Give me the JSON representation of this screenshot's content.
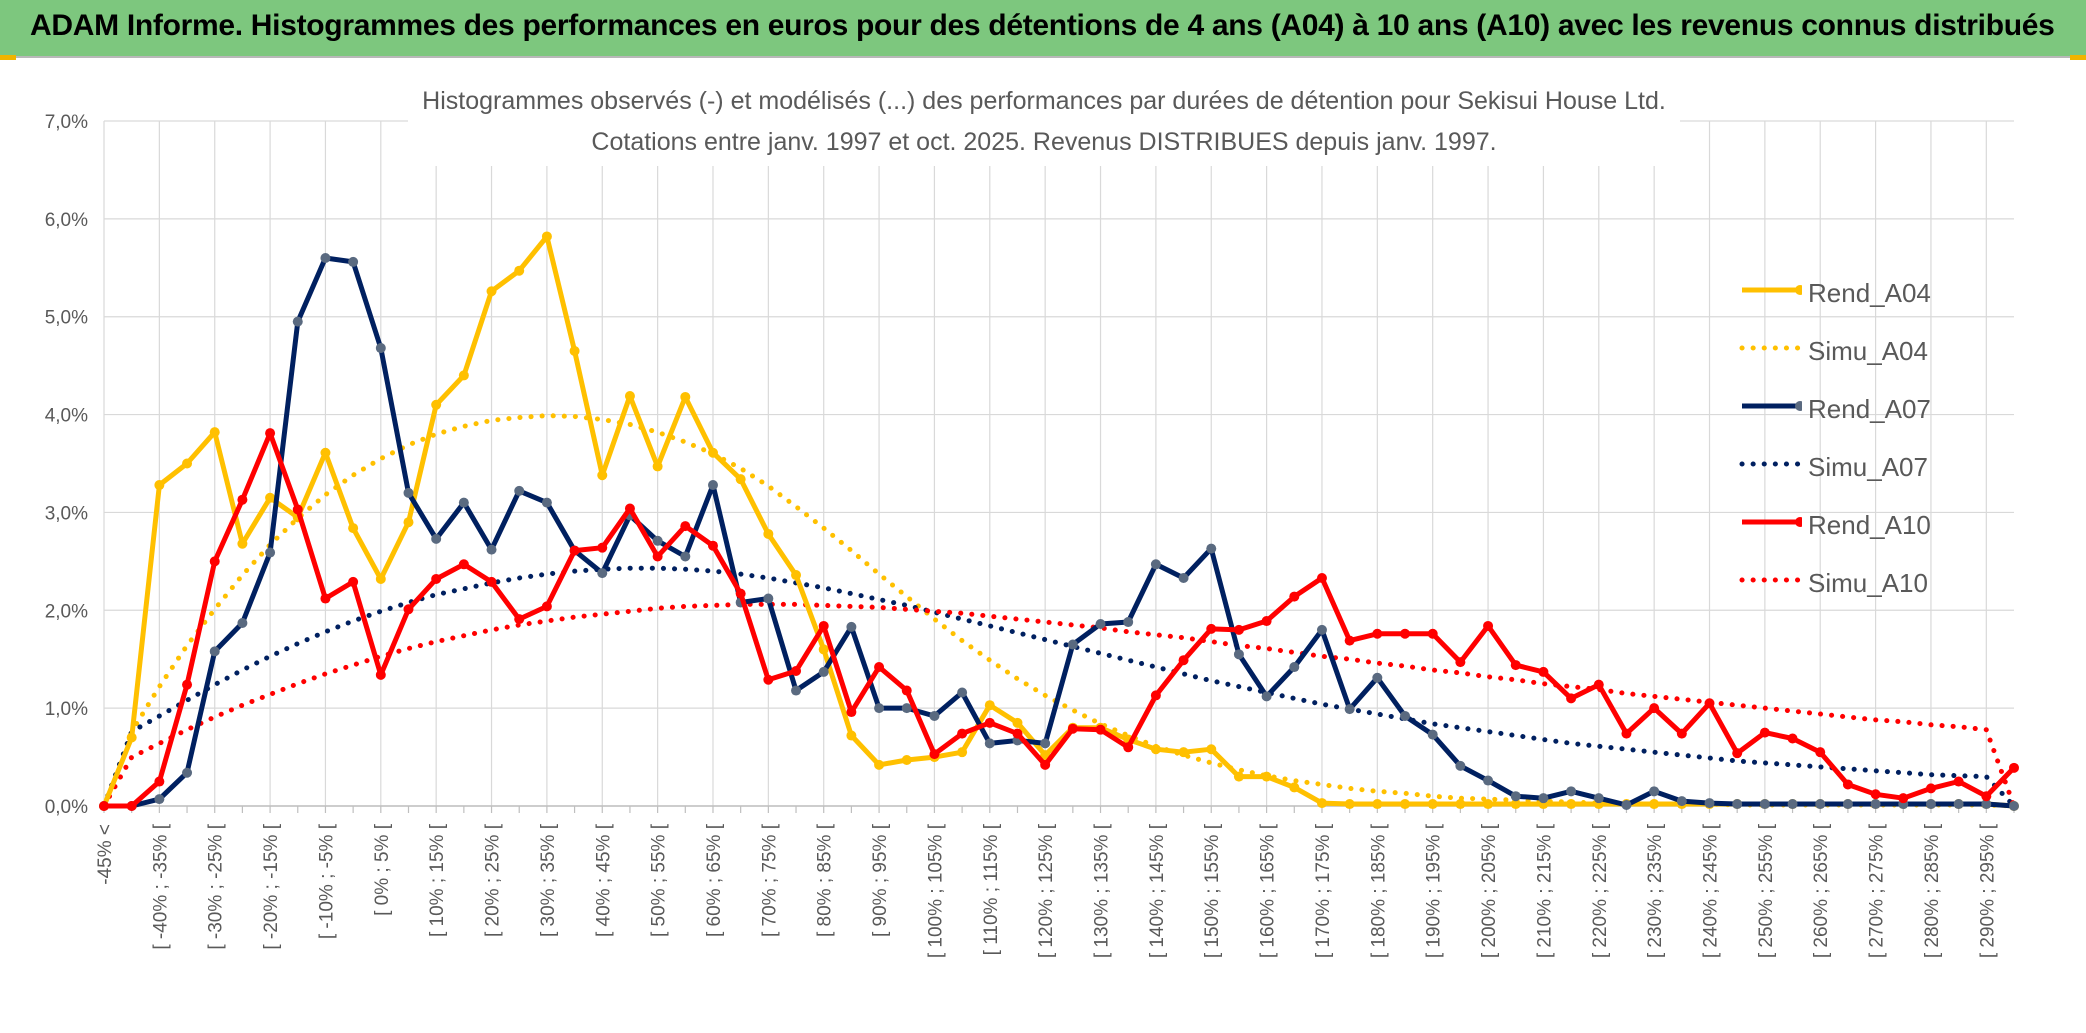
{
  "banner": {
    "title": "ADAM Informe. Histogrammes des performances en euros pour des détentions de 4 ans (A04) à 10 ans (A10) avec les revenus connus distribués"
  },
  "colors": {
    "banner_bg": "#7dc77e",
    "accent_corner": "#f0b400",
    "A04": "#ffc000",
    "A07": "#002060",
    "A07_marker": "#5a6a80",
    "A10": "#ff0000",
    "grid": "#d9d9d9",
    "axis_text": "#595959"
  },
  "chart_data": {
    "type": "line",
    "title": "Histogrammes observés (-) et modélisés (...) des performances par durées de détention pour Sekisui House Ltd.",
    "subtitle": "Cotations entre janv. 1997 et oct. 2025. Revenus DISTRIBUES depuis janv. 1997.",
    "xlabel": "",
    "ylabel": "",
    "ylim": [
      0,
      7
    ],
    "y_ticks": [
      "0,0%",
      "1,0%",
      "2,0%",
      "3,0%",
      "4,0%",
      "5,0%",
      "6,0%",
      "7,0%"
    ],
    "y_unit": "%",
    "grid": true,
    "legend_position": "right",
    "x_tick_labels": [
      "-45% <",
      "[ -40% ; -35% [",
      "[ -30% ; -25% [",
      "[ -20% ; -15% [",
      "[ -10% ; -5% [",
      "[ 0% ; 5% [",
      "[ 10% ; 15% [",
      "[ 20% ; 25% [",
      "[ 30% ; 35% [",
      "[ 40% ; 45% [",
      "[ 50% ; 55% [",
      "[ 60% ; 65% [",
      "[ 70% ; 75% [",
      "[ 80% ; 85% [",
      "[ 90% ; 95% [",
      "[ 100% ; 105% [",
      "[ 110% ; 115% [",
      "[ 120% ; 125% [",
      "[ 130% ; 135% [",
      "[ 140% ; 145% [",
      "[ 150% ; 155% [",
      "[ 160% ; 165% [",
      "[ 170% ; 175% [",
      "[ 180% ; 185% [",
      "[ 190% ; 195% [",
      "[ 200% ; 205% [",
      "[ 210% ; 215% [",
      "[ 220% ; 225% [",
      "[ 230% ; 235% [",
      "[ 240% ; 245% [",
      "[ 250% ; 255% [",
      "[ 260% ; 265% [",
      "[ 270% ; 275% [",
      "[ 280% ; 285% [",
      "[ 290% ; 295% ["
    ],
    "x_start_percent": -45,
    "x_end_percent": 300,
    "x_step_percent": 5,
    "series": [
      {
        "name": "Rend_A04",
        "style": "solid",
        "color": "#ffc000",
        "values": [
          0.0,
          0.7,
          3.28,
          3.5,
          3.82,
          2.68,
          3.15,
          2.95,
          3.61,
          2.84,
          2.32,
          2.9,
          4.1,
          4.4,
          5.26,
          5.47,
          5.82,
          4.65,
          3.38,
          4.19,
          3.47,
          4.18,
          3.61,
          3.34,
          2.78,
          2.36,
          1.6,
          0.72,
          0.42,
          0.47,
          0.5,
          0.55,
          1.03,
          0.85,
          0.52,
          0.8,
          0.8,
          0.68,
          0.58,
          0.55,
          0.58,
          0.3,
          0.3,
          0.19,
          0.03,
          0.02,
          0.02,
          0.02,
          0.02,
          0.02,
          0.02,
          0.02,
          0.02,
          0.02,
          0.02,
          0.02,
          0.02,
          0.02,
          0.02,
          0.02,
          0.02,
          0.02,
          0.02,
          0.02,
          0.02,
          0.02,
          0.02,
          0.02,
          0.02,
          0.0
        ]
      },
      {
        "name": "Simu_A04",
        "style": "dotted",
        "color": "#ffc000",
        "values": [
          0.0,
          0.76,
          1.22,
          1.64,
          2.01,
          2.36,
          2.67,
          2.94,
          3.18,
          3.38,
          3.55,
          3.69,
          3.8,
          3.88,
          3.94,
          3.97,
          3.99,
          3.98,
          3.95,
          3.9,
          3.82,
          3.72,
          3.6,
          3.45,
          3.27,
          3.06,
          2.84,
          2.61,
          2.37,
          2.14,
          1.91,
          1.69,
          1.49,
          1.3,
          1.13,
          0.98,
          0.84,
          0.72,
          0.61,
          0.52,
          0.44,
          0.37,
          0.31,
          0.26,
          0.22,
          0.18,
          0.15,
          0.13,
          0.1,
          0.08,
          0.07,
          0.06,
          0.05,
          0.04,
          0.03,
          0.03,
          0.02,
          0.02,
          0.02,
          0.01,
          0.01,
          0.01,
          0.01,
          0.01,
          0.01,
          0.01,
          0.01,
          0.01,
          0.01,
          0.0
        ]
      },
      {
        "name": "Rend_A07",
        "style": "solid",
        "color": "#002060",
        "values": [
          0.0,
          0.0,
          0.07,
          0.34,
          1.58,
          1.87,
          2.59,
          4.95,
          5.6,
          5.56,
          4.68,
          3.2,
          2.73,
          3.1,
          2.62,
          3.22,
          3.1,
          2.61,
          2.38,
          2.97,
          2.71,
          2.55,
          3.28,
          2.08,
          2.12,
          1.18,
          1.37,
          1.83,
          1.0,
          1.0,
          0.92,
          1.16,
          0.64,
          0.67,
          0.64,
          1.65,
          1.86,
          1.88,
          2.47,
          2.33,
          2.63,
          1.55,
          1.12,
          1.42,
          1.8,
          0.99,
          1.31,
          0.92,
          0.73,
          0.41,
          0.26,
          0.1,
          0.08,
          0.15,
          0.08,
          0.01,
          0.15,
          0.05,
          0.03,
          0.02,
          0.02,
          0.02,
          0.02,
          0.02,
          0.02,
          0.02,
          0.02,
          0.02,
          0.02,
          0.0
        ]
      },
      {
        "name": "Simu_A07",
        "style": "dotted",
        "color": "#002060",
        "values": [
          0.0,
          0.76,
          0.92,
          1.08,
          1.24,
          1.39,
          1.53,
          1.66,
          1.78,
          1.89,
          1.99,
          2.08,
          2.16,
          2.22,
          2.28,
          2.33,
          2.37,
          2.4,
          2.42,
          2.43,
          2.43,
          2.42,
          2.4,
          2.37,
          2.33,
          2.28,
          2.23,
          2.17,
          2.11,
          2.05,
          1.98,
          1.91,
          1.84,
          1.77,
          1.7,
          1.63,
          1.56,
          1.49,
          1.42,
          1.35,
          1.28,
          1.22,
          1.16,
          1.1,
          1.04,
          0.99,
          0.94,
          0.89,
          0.84,
          0.8,
          0.76,
          0.72,
          0.68,
          0.64,
          0.61,
          0.58,
          0.55,
          0.52,
          0.49,
          0.46,
          0.44,
          0.42,
          0.4,
          0.38,
          0.36,
          0.34,
          0.32,
          0.31,
          0.3,
          0.0
        ]
      },
      {
        "name": "Rend_A10",
        "style": "solid",
        "color": "#ff0000",
        "values": [
          0.0,
          0.0,
          0.25,
          1.24,
          2.5,
          3.13,
          3.81,
          3.03,
          2.12,
          2.29,
          1.34,
          2.01,
          2.32,
          2.47,
          2.29,
          1.91,
          2.04,
          2.61,
          2.64,
          3.04,
          2.55,
          2.86,
          2.66,
          2.17,
          1.29,
          1.38,
          1.84,
          0.96,
          1.42,
          1.18,
          0.53,
          0.74,
          0.85,
          0.74,
          0.42,
          0.79,
          0.78,
          0.6,
          1.13,
          1.49,
          1.81,
          1.8,
          1.89,
          2.14,
          2.33,
          1.69,
          1.76,
          1.76,
          1.76,
          1.47,
          1.84,
          1.44,
          1.37,
          1.1,
          1.24,
          0.74,
          1.0,
          0.74,
          1.05,
          0.54,
          0.75,
          0.69,
          0.55,
          0.22,
          0.12,
          0.08,
          0.18,
          0.25,
          0.1,
          0.39
        ]
      },
      {
        "name": "Simu_A10",
        "style": "dotted",
        "color": "#ff0000",
        "values": [
          0.0,
          0.5,
          0.64,
          0.78,
          0.91,
          1.03,
          1.14,
          1.25,
          1.35,
          1.44,
          1.53,
          1.61,
          1.68,
          1.74,
          1.8,
          1.85,
          1.89,
          1.93,
          1.96,
          1.99,
          2.02,
          2.04,
          2.05,
          2.06,
          2.06,
          2.06,
          2.05,
          2.04,
          2.03,
          2.01,
          1.99,
          1.97,
          1.94,
          1.91,
          1.88,
          1.85,
          1.82,
          1.78,
          1.75,
          1.72,
          1.68,
          1.64,
          1.61,
          1.57,
          1.53,
          1.5,
          1.46,
          1.43,
          1.39,
          1.36,
          1.32,
          1.29,
          1.25,
          1.22,
          1.19,
          1.15,
          1.12,
          1.09,
          1.06,
          1.03,
          1.0,
          0.97,
          0.94,
          0.91,
          0.88,
          0.86,
          0.83,
          0.81,
          0.78,
          0.0
        ]
      }
    ]
  }
}
